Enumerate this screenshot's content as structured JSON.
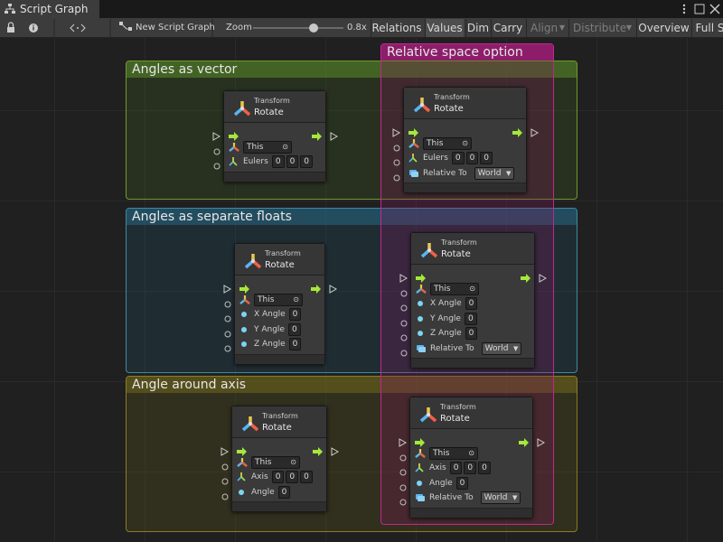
{
  "tab": {
    "title": "Script Graph"
  },
  "toolbar": {
    "new_graph": "New Script Graph",
    "zoom_label": "Zoom",
    "zoom_value": "0.8x",
    "buttons": [
      "Relations",
      "Values",
      "Dim",
      "Carry",
      "Align",
      "Distribute",
      "Overview",
      "Full S"
    ]
  },
  "groups": [
    {
      "title": "Angles as vector"
    },
    {
      "title": "Angles as separate floats"
    },
    {
      "title": "Angle around axis"
    },
    {
      "title": "Relative space option"
    }
  ],
  "nodes": [
    {
      "category": "Transform",
      "title": "Rotate",
      "rows": [
        {
          "field": "This"
        },
        {
          "label": "Eulers",
          "fields": [
            0,
            0,
            0
          ]
        }
      ]
    },
    {
      "category": "Transform",
      "title": "Rotate",
      "rows": [
        {
          "field": "This"
        },
        {
          "label": "Eulers",
          "fields": [
            0,
            0,
            0
          ]
        },
        {
          "label": "Relative To",
          "dropdown": "World"
        }
      ]
    },
    {
      "category": "Transform",
      "title": "Rotate",
      "rows": [
        {
          "field": "This"
        },
        {
          "label": "X Angle",
          "fields": [
            0
          ]
        },
        {
          "label": "Y Angle",
          "fields": [
            0
          ]
        },
        {
          "label": "Z Angle",
          "fields": [
            0
          ]
        }
      ]
    },
    {
      "category": "Transform",
      "title": "Rotate",
      "rows": [
        {
          "field": "This"
        },
        {
          "label": "X Angle",
          "fields": [
            0
          ]
        },
        {
          "label": "Y Angle",
          "fields": [
            0
          ]
        },
        {
          "label": "Z Angle",
          "fields": [
            0
          ]
        },
        {
          "label": "Relative To",
          "dropdown": "World"
        }
      ]
    },
    {
      "category": "Transform",
      "title": "Rotate",
      "rows": [
        {
          "field": "This"
        },
        {
          "label": "Axis",
          "fields": [
            0,
            0,
            0
          ]
        },
        {
          "label": "Angle",
          "fields": [
            0
          ]
        }
      ]
    },
    {
      "category": "Transform",
      "title": "Rotate",
      "rows": [
        {
          "field": "This"
        },
        {
          "label": "Axis",
          "fields": [
            0,
            0,
            0
          ]
        },
        {
          "label": "Angle",
          "fields": [
            0
          ]
        },
        {
          "label": "Relative To",
          "dropdown": "World"
        }
      ]
    }
  ]
}
